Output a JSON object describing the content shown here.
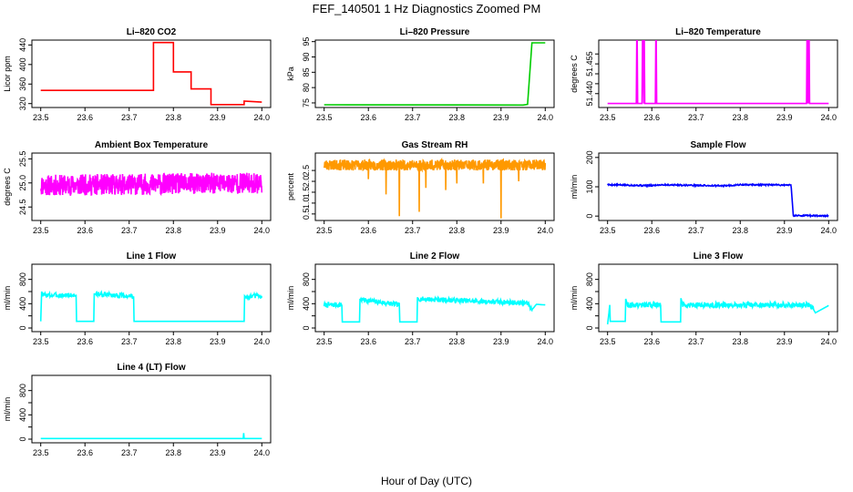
{
  "figure": {
    "title": "FEF_140501  1 Hz Diagnostics Zoomed PM",
    "xlabel": "Hour of Day (UTC)"
  },
  "chart_data": [
    {
      "type": "line",
      "title": "Li–820 CO2",
      "ylabel": "Licor ppm",
      "color": "#ff0000",
      "xlim": [
        23.48,
        24.02
      ],
      "ylim": [
        312,
        450
      ],
      "xticks": [
        23.5,
        23.6,
        23.7,
        23.8,
        23.9,
        24.0
      ],
      "xtick_labels": [
        "23.5",
        "23.6",
        "23.7",
        "23.8",
        "23.9",
        "24.0"
      ],
      "yticks": [
        320,
        360,
        400,
        440
      ],
      "ytick_labels": [
        "320",
        "360",
        "400",
        "440"
      ],
      "series": [
        {
          "x": [
            23.5,
            23.755,
            23.755,
            23.8,
            23.8,
            23.84,
            23.84,
            23.885,
            23.885,
            23.96,
            23.96,
            24.0
          ],
          "y": [
            347,
            347,
            445,
            445,
            385,
            385,
            350,
            350,
            318,
            318,
            325,
            323
          ]
        }
      ]
    },
    {
      "type": "line",
      "title": "Li–820 Pressure",
      "ylabel": "kPa",
      "color": "#00cc00",
      "xlim": [
        23.48,
        24.02
      ],
      "ylim": [
        73.5,
        95.5
      ],
      "xticks": [
        23.5,
        23.6,
        23.7,
        23.8,
        23.9,
        24.0
      ],
      "xtick_labels": [
        "23.5",
        "23.6",
        "23.7",
        "23.8",
        "23.9",
        "24.0"
      ],
      "yticks": [
        75,
        80,
        85,
        90,
        95
      ],
      "ytick_labels": [
        "75",
        "80",
        "85",
        "90",
        "95"
      ],
      "series": [
        {
          "x": [
            23.5,
            23.95,
            23.96,
            23.97,
            24.0
          ],
          "y": [
            74.4,
            74.3,
            74.5,
            94.6,
            94.6
          ]
        }
      ]
    },
    {
      "type": "line",
      "title": "Li–820 Temperature",
      "ylabel": "degrees C",
      "color": "#ff00ff",
      "xlim": [
        23.48,
        24.02
      ],
      "ylim": [
        51.433,
        51.467
      ],
      "xticks": [
        23.5,
        23.6,
        23.7,
        23.8,
        23.9,
        24.0
      ],
      "xtick_labels": [
        "23.5",
        "23.6",
        "23.7",
        "23.8",
        "23.9",
        "24.0"
      ],
      "yticks": [
        51.44,
        51.445,
        51.45,
        51.455,
        51.46
      ],
      "ytick_labels": [
        "51.440",
        "",
        "",
        "51.455",
        ""
      ],
      "series": [
        {
          "x": [
            23.5,
            23.565,
            23.566,
            23.567,
            23.568,
            23.578,
            23.579,
            23.58,
            23.582,
            23.583,
            23.584,
            23.608,
            23.609,
            23.61,
            23.611,
            23.95,
            23.951,
            23.952,
            23.953,
            23.954,
            23.955,
            23.956,
            23.957,
            24.0
          ],
          "y": [
            51.435,
            51.435,
            51.467,
            51.467,
            51.435,
            51.435,
            51.467,
            51.467,
            51.435,
            51.467,
            51.435,
            51.435,
            51.467,
            51.467,
            51.435,
            51.435,
            51.467,
            51.435,
            51.467,
            51.435,
            51.467,
            51.467,
            51.435,
            51.435
          ]
        }
      ]
    },
    {
      "type": "line",
      "title": "Ambient Box Temperature",
      "ylabel": "degrees C",
      "color": "#ff00ff",
      "xlim": [
        23.48,
        24.02
      ],
      "ylim": [
        24.22,
        25.62
      ],
      "xticks": [
        23.5,
        23.6,
        23.7,
        23.8,
        23.9,
        24.0
      ],
      "xtick_labels": [
        "23.5",
        "23.6",
        "23.7",
        "23.8",
        "23.9",
        "24.0"
      ],
      "yticks": [
        24.5,
        25.0,
        25.5
      ],
      "ytick_labels": [
        "24.5",
        "25.0",
        "25.5"
      ],
      "series": [
        {
          "x": [
            23.5,
            24.0
          ],
          "y": [
            24.95,
            25.0
          ],
          "noise": 0.22,
          "points": 900,
          "seed": 11
        }
      ]
    },
    {
      "type": "line",
      "title": "Gas Stream RH",
      "ylabel": "percent",
      "color": "#ff9900",
      "xlim": [
        23.48,
        24.02
      ],
      "ylim": [
        0.2,
        3.3
      ],
      "xticks": [
        23.5,
        23.6,
        23.7,
        23.8,
        23.9,
        24.0
      ],
      "xtick_labels": [
        "23.5",
        "23.6",
        "23.7",
        "23.8",
        "23.9",
        "24.0"
      ],
      "yticks": [
        0.5,
        1.0,
        1.5,
        2.0,
        2.5
      ],
      "ytick_labels": [
        "0.5",
        "1.0",
        "1.5",
        "2.0",
        "2.5"
      ],
      "series": [
        {
          "x": [
            23.5,
            24.0
          ],
          "y": [
            2.75,
            2.75
          ],
          "noise": 0.25,
          "points": 900,
          "seed": 23,
          "dips": [
            [
              23.67,
              0.4
            ],
            [
              23.715,
              0.6
            ],
            [
              23.64,
              1.4
            ],
            [
              23.73,
              1.7
            ],
            [
              23.775,
              1.6
            ],
            [
              23.8,
              1.9
            ],
            [
              23.86,
              1.9
            ],
            [
              23.9,
              0.3
            ],
            [
              23.94,
              2.0
            ],
            [
              23.6,
              2.1
            ]
          ]
        }
      ]
    },
    {
      "type": "line",
      "title": "Sample Flow",
      "ylabel": "ml/min",
      "color": "#0000ff",
      "xlim": [
        23.48,
        24.02
      ],
      "ylim": [
        -15,
        215
      ],
      "xticks": [
        23.5,
        23.6,
        23.7,
        23.8,
        23.9,
        24.0
      ],
      "xtick_labels": [
        "23.5",
        "23.6",
        "23.7",
        "23.8",
        "23.9",
        "24.0"
      ],
      "yticks": [
        0,
        100,
        200
      ],
      "ytick_labels": [
        "0",
        "100",
        "200"
      ],
      "series": [
        {
          "x": [
            23.5,
            23.6,
            23.62,
            23.7,
            23.76,
            23.8,
            23.91,
            23.915,
            23.92,
            24.0
          ],
          "y": [
            107,
            104,
            107,
            105,
            103,
            107,
            106,
            106,
            2,
            1
          ],
          "noise": 2.5,
          "points": 450,
          "seed": 5
        }
      ]
    },
    {
      "type": "line",
      "title": "Line 1 Flow",
      "ylabel": "ml/min",
      "color": "#00ffff",
      "xlim": [
        23.48,
        24.02
      ],
      "ylim": [
        -60,
        1050
      ],
      "xticks": [
        23.5,
        23.6,
        23.7,
        23.8,
        23.9,
        24.0
      ],
      "xtick_labels": [
        "23.5",
        "23.6",
        "23.7",
        "23.8",
        "23.9",
        "24.0"
      ],
      "yticks": [
        0,
        200,
        400,
        600,
        800
      ],
      "ytick_labels": [
        "0",
        "",
        "400",
        "",
        "800"
      ],
      "series": [
        {
          "x": [
            23.5,
            23.502,
            23.505,
            23.58,
            23.581,
            23.62,
            23.621,
            23.625,
            23.71,
            23.711,
            23.96,
            23.961,
            23.965,
            23.99,
            24.0
          ],
          "y": [
            110,
            600,
            540,
            540,
            110,
            110,
            560,
            560,
            520,
            110,
            110,
            530,
            490,
            540,
            500
          ],
          "noise": 40,
          "segments": [
            [
              23.505,
              23.58
            ],
            [
              23.625,
              23.71
            ],
            [
              23.965,
              24.0
            ]
          ],
          "points": 500,
          "seed": 3
        }
      ]
    },
    {
      "type": "line",
      "title": "Line 2 Flow",
      "ylabel": "ml/min",
      "color": "#00ffff",
      "xlim": [
        23.48,
        24.02
      ],
      "ylim": [
        -60,
        1050
      ],
      "xticks": [
        23.5,
        23.6,
        23.7,
        23.8,
        23.9,
        24.0
      ],
      "xtick_labels": [
        "23.5",
        "23.6",
        "23.7",
        "23.8",
        "23.9",
        "24.0"
      ],
      "yticks": [
        0,
        200,
        400,
        600,
        800
      ],
      "ytick_labels": [
        "0",
        "",
        "400",
        "",
        "800"
      ],
      "series": [
        {
          "x": [
            23.5,
            23.54,
            23.541,
            23.58,
            23.581,
            23.67,
            23.671,
            23.71,
            23.711,
            23.96,
            23.97,
            23.98,
            24.0
          ],
          "y": [
            380,
            380,
            100,
            100,
            470,
            380,
            100,
            100,
            480,
            410,
            300,
            390,
            380
          ],
          "noise": 40,
          "segments": [
            [
              23.5,
              23.54
            ],
            [
              23.581,
              23.67
            ],
            [
              23.711,
              23.97
            ]
          ],
          "points": 500,
          "seed": 7
        }
      ]
    },
    {
      "type": "line",
      "title": "Line 3 Flow",
      "ylabel": "ml/min",
      "color": "#00ffff",
      "xlim": [
        23.48,
        24.02
      ],
      "ylim": [
        -60,
        1050
      ],
      "xticks": [
        23.5,
        23.6,
        23.7,
        23.8,
        23.9,
        24.0
      ],
      "xtick_labels": [
        "23.5",
        "23.6",
        "23.7",
        "23.8",
        "23.9",
        "24.0"
      ],
      "yticks": [
        0,
        200,
        400,
        600,
        800
      ],
      "ytick_labels": [
        "0",
        "",
        "400",
        "",
        "800"
      ],
      "series": [
        {
          "x": [
            23.5,
            23.505,
            23.506,
            23.54,
            23.541,
            23.545,
            23.62,
            23.621,
            23.625,
            23.665,
            23.666,
            23.67,
            23.92,
            23.96,
            23.97,
            24.0
          ],
          "y": [
            60,
            380,
            110,
            110,
            480,
            380,
            380,
            100,
            100,
            100,
            490,
            380,
            380,
            380,
            250,
            370
          ],
          "noise": 45,
          "segments": [
            [
              23.545,
              23.62
            ],
            [
              23.67,
              23.965
            ]
          ],
          "points": 500,
          "seed": 9
        }
      ]
    },
    {
      "type": "line",
      "title": "Line 4 (LT) Flow",
      "ylabel": "ml/min",
      "color": "#00ffff",
      "xlim": [
        23.48,
        24.02
      ],
      "ylim": [
        -60,
        1050
      ],
      "xticks": [
        23.5,
        23.6,
        23.7,
        23.8,
        23.9,
        24.0
      ],
      "xtick_labels": [
        "23.5",
        "23.6",
        "23.7",
        "23.8",
        "23.9",
        "24.0"
      ],
      "yticks": [
        0,
        200,
        400,
        600,
        800
      ],
      "ytick_labels": [
        "0",
        "",
        "400",
        "",
        "800"
      ],
      "series": [
        {
          "x": [
            23.5,
            23.958,
            23.959,
            23.96,
            23.961,
            24.0
          ],
          "y": [
            10,
            10,
            100,
            10,
            10,
            10
          ]
        }
      ]
    }
  ]
}
